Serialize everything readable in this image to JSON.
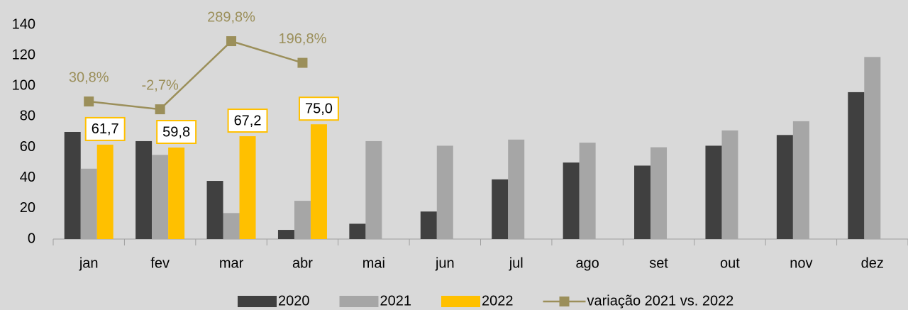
{
  "chart_data": {
    "type": "bar",
    "categories": [
      "jan",
      "fev",
      "mar",
      "abr",
      "mai",
      "jun",
      "jul",
      "ago",
      "set",
      "out",
      "nov",
      "dez"
    ],
    "series": [
      {
        "name": "2020",
        "type": "bar",
        "color": "#404040",
        "values": [
          70,
          64,
          38,
          6,
          10,
          18,
          39,
          50,
          48,
          61,
          68,
          96
        ]
      },
      {
        "name": "2021",
        "type": "bar",
        "color": "#a6a6a6",
        "values": [
          46,
          55,
          17,
          25,
          64,
          61,
          65,
          63,
          60,
          71,
          77,
          119
        ]
      },
      {
        "name": "2022",
        "type": "bar",
        "color": "#ffc000",
        "values": [
          61.7,
          59.8,
          67.2,
          75.0,
          null,
          null,
          null,
          null,
          null,
          null,
          null,
          null
        ],
        "value_labels": [
          "61,7",
          "59,8",
          "67,2",
          "75,0",
          null,
          null,
          null,
          null,
          null,
          null,
          null,
          null
        ]
      },
      {
        "name": "variação 2021 vs. 2022",
        "type": "line",
        "axis": "y2",
        "color": "#9b8f5a",
        "values": [
          30.8,
          -2.7,
          289.8,
          196.8,
          null,
          null,
          null,
          null,
          null,
          null,
          null,
          null
        ],
        "value_labels": [
          "30,8%",
          "-2,7%",
          "289,8%",
          "196,8%",
          null,
          null,
          null,
          null,
          null,
          null,
          null,
          null
        ]
      }
    ],
    "ylim": [
      0,
      140
    ],
    "yticks": [
      0,
      20,
      40,
      60,
      80,
      100,
      120,
      140
    ],
    "y2lim": [
      -560,
      360
    ],
    "grid": false,
    "legend": "bottom"
  }
}
